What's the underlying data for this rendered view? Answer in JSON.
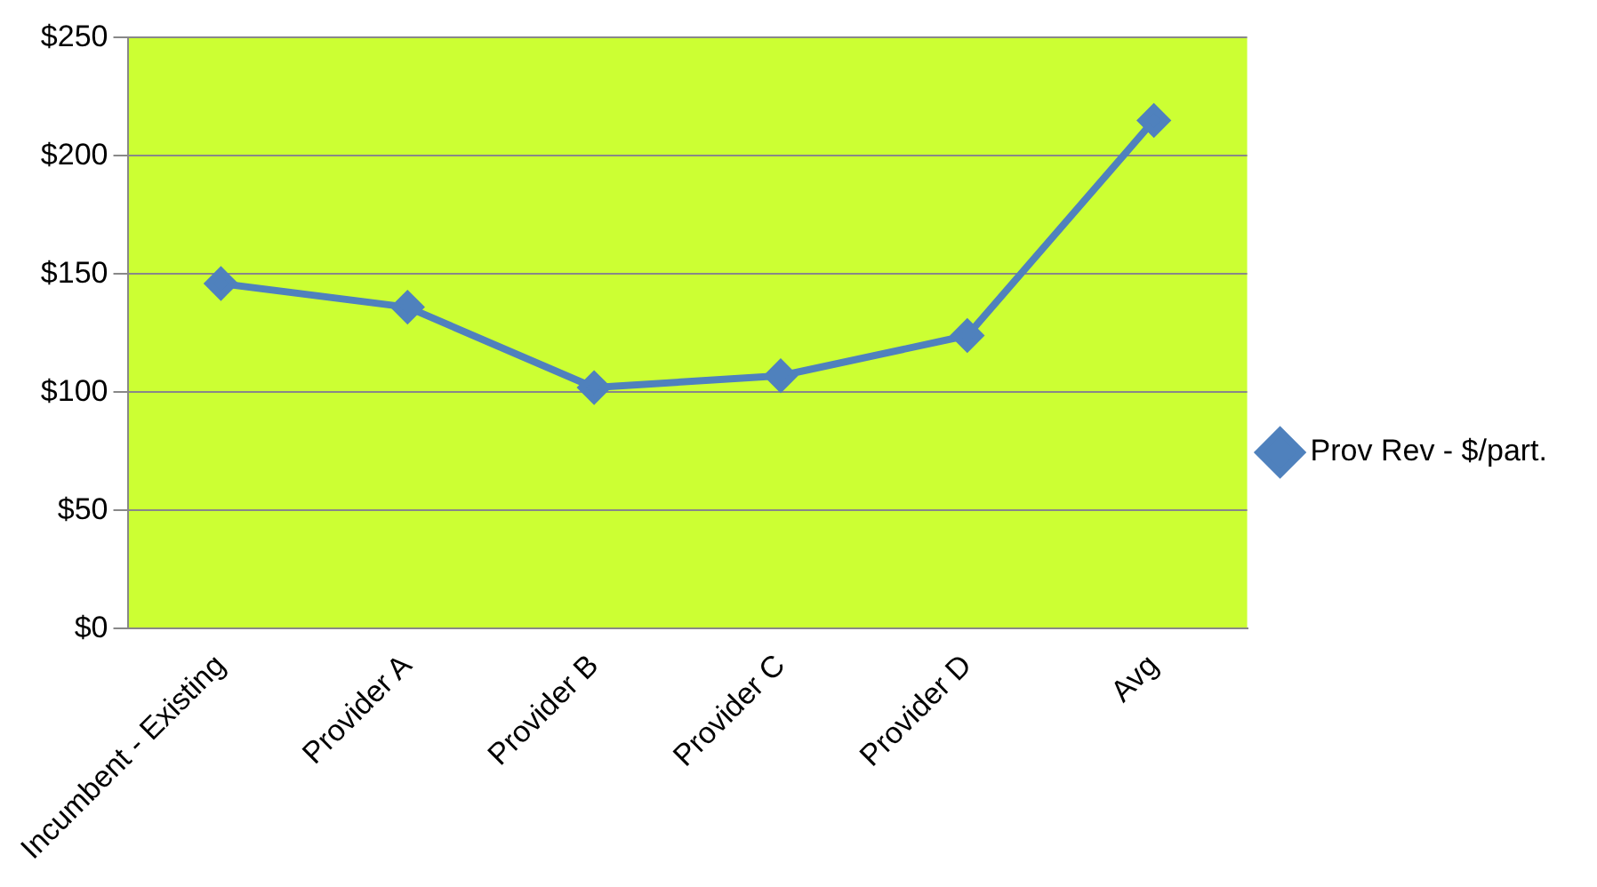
{
  "chart_data": {
    "type": "line",
    "categories": [
      "Incumbent - Existing",
      "Provider A",
      "Provider B",
      "Provider C",
      "Provider D",
      "Avg"
    ],
    "series": [
      {
        "name": "Prov Rev - $/part.",
        "color": "#4f81bd",
        "values": [
          146,
          136,
          102,
          107,
          124,
          215
        ]
      }
    ],
    "ylim": [
      0,
      250
    ],
    "yticks": [
      {
        "value": 0,
        "label": "$0"
      },
      {
        "value": 50,
        "label": "$50"
      },
      {
        "value": 100,
        "label": "$100"
      },
      {
        "value": 150,
        "label": "$150"
      },
      {
        "value": 200,
        "label": "$200"
      },
      {
        "value": 250,
        "label": "$250"
      }
    ],
    "grid": "y",
    "legend": "right",
    "marker": "diamond",
    "line_style": "solid"
  }
}
